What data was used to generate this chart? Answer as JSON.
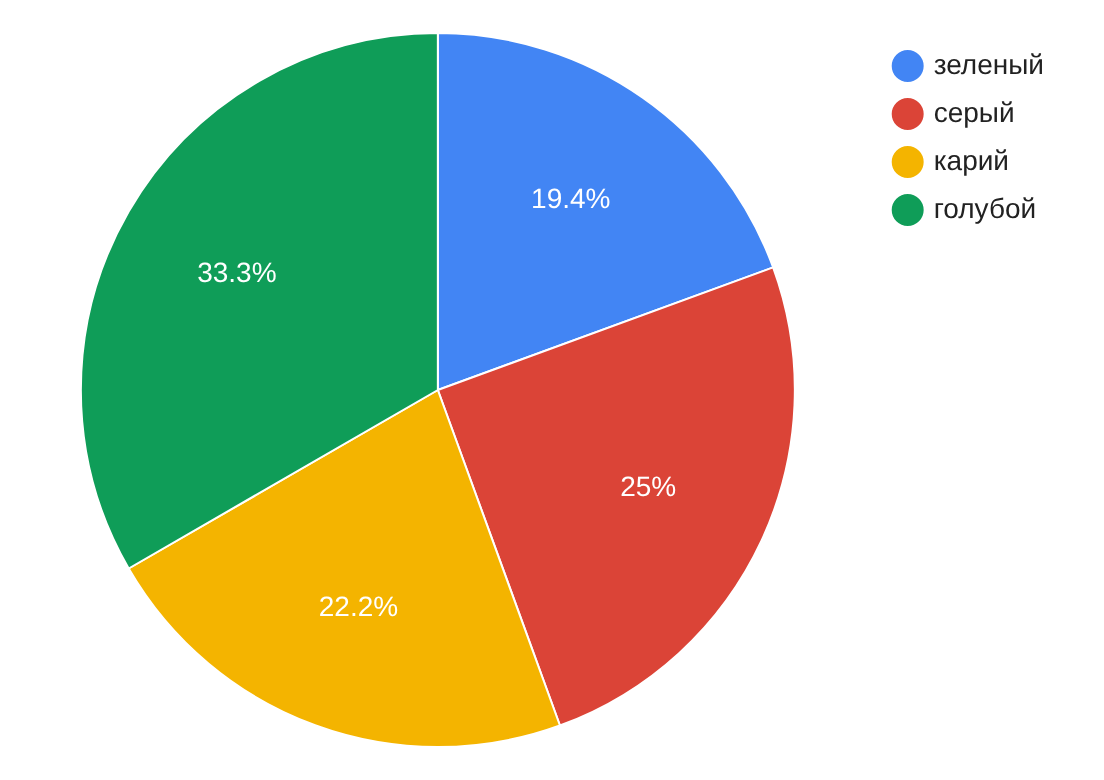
{
  "chart_data": {
    "type": "pie",
    "categories": [
      "зеленый",
      "серый",
      "карий",
      "голубой"
    ],
    "values": [
      19.4,
      25,
      22.2,
      33.3
    ],
    "colors": [
      "#4285f4",
      "#db4437",
      "#f4b400",
      "#0f9d58"
    ],
    "value_labels": [
      "19.4%",
      "25%",
      "22.2%",
      "33.3%"
    ],
    "legend": "top right"
  }
}
